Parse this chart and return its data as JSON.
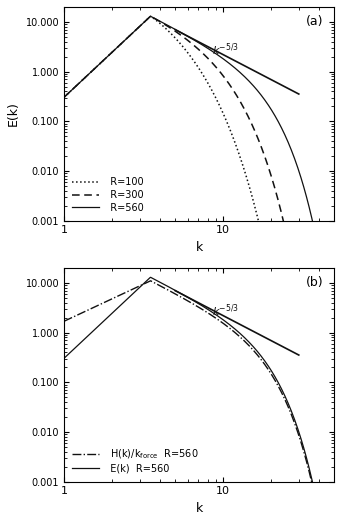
{
  "title_a": "(a)",
  "title_b": "(b)",
  "ylabel_a": "E(k)",
  "xlabel": "k",
  "xlim": [
    1,
    50
  ],
  "ylim": [
    0.001,
    20
  ],
  "bg_color": "#f0f0f0",
  "line_color": "#111111",
  "kolmogorov_label": "k$^{-5/3}$",
  "peak_k": 3.5,
  "peak_E": 13.0,
  "yticks": [
    0.001,
    0.01,
    0.1,
    1.0,
    10.0
  ],
  "yticklabels": [
    "0.001",
    "0.010",
    "0.100",
    "1.000",
    "10.000"
  ],
  "xticks": [
    1,
    10
  ],
  "xticklabels": [
    "1",
    "10"
  ],
  "kolm_x_start": 5.0,
  "kolm_x_end": 30.0,
  "kolm_y_start": 7.0
}
